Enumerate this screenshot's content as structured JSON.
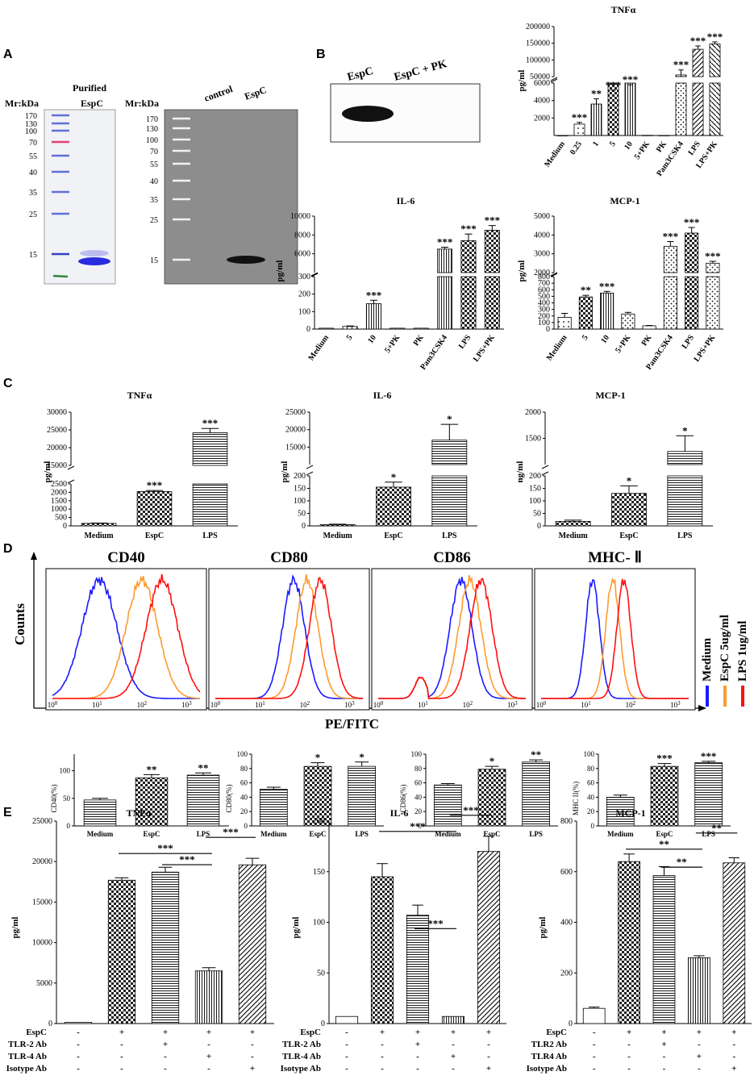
{
  "panel_labels": {
    "a": "A",
    "b": "B",
    "c": "C",
    "d": "D",
    "e": "E"
  },
  "legend": {
    "medium": "Medium",
    "espc": "EspC 5ug/ml",
    "lps": "LPS 1ug/ml"
  },
  "axis": {
    "counts": "Counts",
    "pefitc": "PE/FITC"
  },
  "gelA": {
    "purified": "Purified",
    "espc_label": "EspC",
    "mr": "Mr:kDa",
    "left_markers": [
      "170",
      "130",
      "100",
      "70",
      "55",
      "40",
      "35",
      "25",
      "15"
    ],
    "right_markers": [
      "170",
      "130",
      "100",
      "70",
      "55",
      "40",
      "35",
      "25",
      "15"
    ],
    "control": "control",
    "espc_lane": "EspC"
  },
  "blotB": {
    "lane1": "EspC",
    "lane2": "EspC + PK"
  },
  "colors": {
    "medium": "#1a1aff",
    "espc": "#ff9a2e",
    "lps": "#ff1010"
  },
  "chart_data": [
    {
      "id": "B_TNF",
      "type": "bar",
      "title": "TNFα",
      "ylabel": "pg/ml",
      "break": true,
      "broken_axis": {
        "lower": [
          0,
          6000
        ],
        "upper": [
          50000,
          200000
        ]
      },
      "lower_ticks": [
        "2000",
        "4000",
        "6000"
      ],
      "upper_ticks": [
        "50000",
        "100000",
        "150000",
        "200000"
      ],
      "categories": [
        "Medium",
        "0.25",
        "1",
        "5",
        "10",
        "5+PK",
        "PK",
        "Pam3CSK4",
        "LPS",
        "LPS+PK"
      ],
      "values": [
        0,
        1300,
        3600,
        8500,
        24000,
        20,
        10,
        55000,
        132000,
        148000
      ],
      "errors": [
        0,
        200,
        600,
        500,
        1500,
        0,
        0,
        15000,
        10000,
        6000
      ],
      "stars": [
        "",
        "***",
        "**",
        "***",
        "***",
        "",
        "",
        "***",
        "***",
        "***"
      ],
      "patterns": [
        "plain",
        "dot",
        "vline",
        "cross",
        "vline",
        "plain",
        "plain",
        "dots2",
        "diag",
        "diag2"
      ]
    },
    {
      "id": "B_IL6",
      "type": "bar",
      "title": "IL-6",
      "ylabel": "pg/ml",
      "break": true,
      "broken_axis": {
        "lower": [
          0,
          300
        ],
        "upper": [
          4000,
          10000
        ]
      },
      "lower_ticks": [
        "0",
        "100",
        "200",
        "300"
      ],
      "upper_ticks": [
        "6000",
        "8000",
        "10000"
      ],
      "categories": [
        "Medium",
        "5",
        "10",
        "5+PK",
        "PK",
        "Pam3CSK4",
        "LPS",
        "LPS+PK"
      ],
      "values": [
        5,
        15,
        145,
        5,
        5,
        6500,
        7400,
        8500
      ],
      "errors": [
        0,
        3,
        20,
        0,
        0,
        200,
        700,
        500
      ],
      "stars": [
        "",
        "",
        "***",
        "",
        "",
        "***",
        "***",
        "***"
      ],
      "patterns": [
        "plain",
        "dots2",
        "vline",
        "dots2",
        "plain",
        "vline",
        "cross",
        "cross"
      ]
    },
    {
      "id": "B_MCP",
      "type": "bar",
      "title": "MCP-1",
      "ylabel": "pg/ml",
      "break": true,
      "broken_axis": {
        "lower": [
          0,
          800
        ],
        "upper": [
          2000,
          5000
        ]
      },
      "lower_ticks": [
        "0",
        "100",
        "200",
        "300",
        "400",
        "500",
        "600",
        "700",
        "800"
      ],
      "upper_ticks": [
        "2000",
        "3000",
        "4000",
        "5000"
      ],
      "categories": [
        "Medium",
        "5",
        "10",
        "5+PK",
        "PK",
        "Pam3CSK4",
        "LPS",
        "LPS+PK"
      ],
      "values": [
        180,
        490,
        550,
        230,
        50,
        3400,
        4100,
        2500
      ],
      "errors": [
        60,
        25,
        25,
        25,
        5,
        250,
        300,
        100
      ],
      "stars": [
        "",
        "**",
        "***",
        "",
        "",
        "***",
        "***",
        "***"
      ],
      "patterns": [
        "dot",
        "cross",
        "vline",
        "dots2",
        "plain",
        "dots2",
        "cross",
        "dots2"
      ]
    },
    {
      "id": "C_TNF",
      "type": "bar",
      "title": "TNFα",
      "ylabel": "pg/ml",
      "break": true,
      "broken_axis": {
        "lower": [
          0,
          2500
        ],
        "upper": [
          15000,
          30000
        ]
      },
      "lower_ticks": [
        "0",
        "500",
        "1000",
        "1500",
        "2000",
        "2500"
      ],
      "upper_ticks": [
        "15000",
        "20000",
        "25000",
        "30000"
      ],
      "categories": [
        "Medium",
        "EspC",
        "LPS"
      ],
      "values": [
        150,
        2050,
        24200
      ],
      "errors": [
        20,
        60,
        1200
      ],
      "stars": [
        "",
        "***",
        "***"
      ],
      "patterns": [
        "cross",
        "cross",
        "hline"
      ]
    },
    {
      "id": "C_IL6",
      "type": "bar",
      "title": "IL-6",
      "ylabel": "pg/ml",
      "break": true,
      "broken_axis": {
        "lower": [
          0,
          200
        ],
        "upper": [
          10000,
          25000
        ]
      },
      "lower_ticks": [
        "0",
        "50",
        "100",
        "150",
        "200"
      ],
      "upper_ticks": [
        "15000",
        "20000",
        "25000"
      ],
      "categories": [
        "Medium",
        "EspC",
        "LPS"
      ],
      "values": [
        5,
        155,
        17000
      ],
      "errors": [
        2,
        20,
        4500
      ],
      "stars": [
        "",
        "*",
        "*"
      ],
      "patterns": [
        "cross",
        "cross",
        "hline"
      ]
    },
    {
      "id": "C_MCP",
      "type": "bar",
      "title": "MCP-1",
      "ylabel": "ng/ml",
      "break": true,
      "broken_axis": {
        "lower": [
          0,
          200
        ],
        "upper": [
          1000,
          2000
        ]
      },
      "lower_ticks": [
        "0",
        "50",
        "100",
        "150",
        "200"
      ],
      "upper_ticks": [
        "1500",
        "2000"
      ],
      "categories": [
        "Medium",
        "EspC",
        "LPS"
      ],
      "values": [
        18,
        130,
        1250
      ],
      "errors": [
        5,
        30,
        300
      ],
      "stars": [
        "",
        "*",
        "*"
      ],
      "patterns": [
        "cross",
        "cross",
        "hline"
      ]
    },
    {
      "id": "D_CD40",
      "type": "bar",
      "ylabel": "CD40(%)",
      "ylim": [
        0,
        130
      ],
      "ticks": [
        "0",
        "50",
        "100"
      ],
      "tickvals": [
        0,
        50,
        100
      ],
      "categories": [
        "Medium",
        "EspC",
        "LPS"
      ],
      "values": [
        47,
        87,
        92
      ],
      "errors": [
        3,
        6,
        4
      ],
      "stars": [
        "",
        "**",
        "**"
      ],
      "patterns": [
        "hline",
        "cross",
        "hline"
      ]
    },
    {
      "id": "D_CD80",
      "type": "bar",
      "ylabel": "CD80(%)",
      "ylim": [
        0,
        100
      ],
      "ticks": [
        "0",
        "20",
        "40",
        "60",
        "80",
        "100"
      ],
      "tickvals": [
        0,
        20,
        40,
        60,
        80,
        100
      ],
      "categories": [
        "Medium",
        "EspC",
        "LPS"
      ],
      "values": [
        51,
        83,
        83
      ],
      "errors": [
        3,
        5,
        6
      ],
      "stars": [
        "",
        "*",
        "*"
      ],
      "patterns": [
        "hline",
        "cross",
        "hline"
      ]
    },
    {
      "id": "D_CD86",
      "type": "bar",
      "ylabel": "CD86(%)",
      "ylim": [
        0,
        100
      ],
      "ticks": [
        "0",
        "20",
        "40",
        "60",
        "80",
        "100"
      ],
      "tickvals": [
        0,
        20,
        40,
        60,
        80,
        100
      ],
      "categories": [
        "Medium",
        "EspC",
        "LPS"
      ],
      "values": [
        57,
        79,
        89
      ],
      "errors": [
        2,
        4,
        3
      ],
      "stars": [
        "",
        "*",
        "**"
      ],
      "patterns": [
        "hline",
        "cross",
        "hline"
      ]
    },
    {
      "id": "D_MHC",
      "type": "bar",
      "ylabel": "MHC II(%)",
      "ylim": [
        0,
        100
      ],
      "ticks": [
        "0",
        "20",
        "40",
        "60",
        "80",
        "100"
      ],
      "tickvals": [
        0,
        20,
        40,
        60,
        80,
        100
      ],
      "categories": [
        "Medium",
        "EspC",
        "LPS"
      ],
      "values": [
        40,
        83,
        88
      ],
      "errors": [
        3,
        4,
        2
      ],
      "stars": [
        "",
        "***",
        "***"
      ],
      "patterns": [
        "hline",
        "cross",
        "hline"
      ]
    },
    {
      "id": "E_TNF",
      "type": "bar",
      "title": "TNFα",
      "ylabel": "pg/ml",
      "ylim": [
        0,
        25000
      ],
      "ticks": [
        "0",
        "5000",
        "10000",
        "15000",
        "20000",
        "25000"
      ],
      "tickvals": [
        0,
        5000,
        10000,
        15000,
        20000,
        25000
      ],
      "values": [
        150,
        17700,
        18700,
        6500,
        19600
      ],
      "errors": [
        0,
        300,
        600,
        400,
        800
      ],
      "patterns": [
        "plain",
        "cross",
        "hline",
        "vline",
        "diag"
      ],
      "rows": [
        {
          "label": "EspC",
          "marks": [
            "-",
            "+",
            "+",
            "+",
            "+"
          ]
        },
        {
          "label": "TLR-2 Ab",
          "marks": [
            "-",
            "-",
            "+",
            "-",
            "-"
          ]
        },
        {
          "label": "TLR-4 Ab",
          "marks": [
            "-",
            "-",
            "-",
            "+",
            "-"
          ]
        },
        {
          "label": "Isotype Ab",
          "marks": [
            "-",
            "-",
            "-",
            "-",
            "+"
          ]
        }
      ],
      "brackets": [
        {
          "from": 1,
          "to": 3,
          "text": "***"
        },
        {
          "from": 2,
          "to": 3,
          "text": "***"
        },
        {
          "from": 3,
          "to": 4,
          "text": "***"
        }
      ]
    },
    {
      "id": "E_IL6",
      "type": "bar",
      "title": "IL-6",
      "ylabel": "pg/ml",
      "ylim": [
        0,
        200
      ],
      "ticks": [
        "0",
        "50",
        "100",
        "150",
        "200"
      ],
      "tickvals": [
        0,
        50,
        100,
        150,
        200
      ],
      "values": [
        7,
        145,
        107,
        7,
        170
      ],
      "errors": [
        0,
        13,
        10,
        0,
        15
      ],
      "patterns": [
        "plain",
        "cross",
        "hline",
        "vline",
        "diag"
      ],
      "rows": [
        {
          "label": "EspC",
          "marks": [
            "-",
            "+",
            "+",
            "+",
            "+"
          ]
        },
        {
          "label": "TLR-2 Ab",
          "marks": [
            "-",
            "-",
            "+",
            "-",
            "-"
          ]
        },
        {
          "label": "TLR-4 Ab",
          "marks": [
            "-",
            "-",
            "-",
            "+",
            "-"
          ]
        },
        {
          "label": "Isotype Ab",
          "marks": [
            "-",
            "-",
            "-",
            "-",
            "+"
          ]
        }
      ],
      "brackets": [
        {
          "from": 1,
          "to": 3,
          "text": "***"
        },
        {
          "from": 2,
          "to": 3,
          "text": "***"
        },
        {
          "from": 3,
          "to": 4,
          "text": "***"
        }
      ]
    },
    {
      "id": "E_MCP",
      "type": "bar",
      "title": "MCP-1",
      "ylabel": "pg/ml",
      "ylim": [
        0,
        800
      ],
      "ticks": [
        "0",
        "200",
        "400",
        "600",
        "800"
      ],
      "tickvals": [
        0,
        200,
        400,
        600,
        800
      ],
      "values": [
        60,
        640,
        585,
        260,
        635
      ],
      "errors": [
        5,
        30,
        35,
        8,
        20
      ],
      "patterns": [
        "plain",
        "cross",
        "hline",
        "vline",
        "diag"
      ],
      "rows": [
        {
          "label": "EspC",
          "marks": [
            "-",
            "+",
            "+",
            "+",
            "+"
          ]
        },
        {
          "label": "TLR2 Ab",
          "marks": [
            "-",
            "-",
            "+",
            "-",
            "-"
          ]
        },
        {
          "label": "TLR4 Ab",
          "marks": [
            "-",
            "-",
            "-",
            "+",
            "-"
          ]
        },
        {
          "label": "Isotype Ab",
          "marks": [
            "-",
            "-",
            "-",
            "-",
            "+"
          ]
        }
      ],
      "brackets": [
        {
          "from": 1,
          "to": 3,
          "text": "**"
        },
        {
          "from": 2,
          "to": 3,
          "text": "**"
        },
        {
          "from": 3,
          "to": 4,
          "text": "**"
        }
      ]
    },
    {
      "id": "D_hist",
      "type": "histogram",
      "titles": [
        "CD40",
        "CD80",
        "CD86",
        "MHC- Ⅱ"
      ],
      "x_ticks": [
        "10",
        "10",
        "10",
        "10"
      ],
      "x_exps": [
        "0",
        "1",
        "2",
        "3"
      ],
      "peaks_log10": [
        [
          1.05,
          2.0,
          2.45
        ],
        [
          1.75,
          2.05,
          2.35
        ],
        [
          1.85,
          2.05,
          2.3
        ],
        [
          1.15,
          1.6,
          1.85
        ]
      ],
      "series": [
        "Medium",
        "EspC 5ug/ml",
        "LPS 1ug/ml"
      ]
    }
  ]
}
